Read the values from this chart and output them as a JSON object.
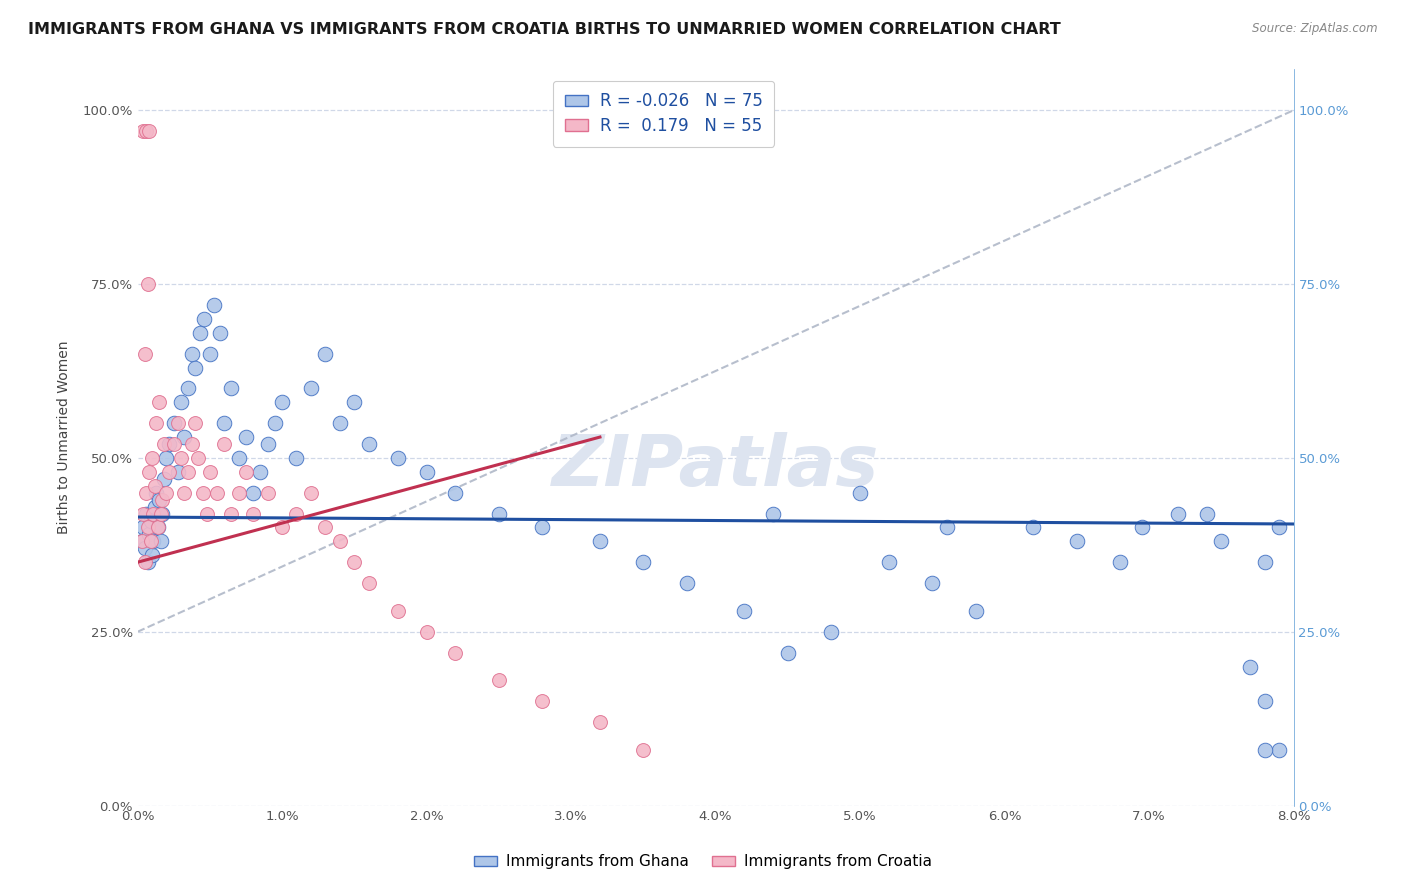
{
  "title": "IMMIGRANTS FROM GHANA VS IMMIGRANTS FROM CROATIA BIRTHS TO UNMARRIED WOMEN CORRELATION CHART",
  "source": "Source: ZipAtlas.com",
  "ylabel": "Births to Unmarried Women",
  "xlim": [
    0.0,
    0.08
  ],
  "ylim": [
    0.0,
    1.06
  ],
  "ghana_color": "#aec6e8",
  "croatia_color": "#f4b8c8",
  "ghana_edge": "#4472c4",
  "croatia_edge": "#e07090",
  "trend_ghana_color": "#1f4fa0",
  "trend_croatia_color": "#c03050",
  "trend_dashed_color": "#b0b8c8",
  "R_ghana": -0.026,
  "N_ghana": 75,
  "R_croatia": 0.179,
  "N_croatia": 55,
  "legend_label_ghana": "Immigrants from Ghana",
  "legend_label_croatia": "Immigrants from Croatia",
  "watermark_text": "ZIPatlas",
  "watermark_color": "#dde4f0",
  "background_color": "#ffffff",
  "grid_color": "#d0d8e8",
  "right_axis_color": "#5b9bd5",
  "title_fontsize": 11.5,
  "axis_label_fontsize": 10,
  "tick_fontsize": 9.5,
  "legend_fontsize": 12,
  "ghana_x": [
    0.0003,
    0.0004,
    0.0005,
    0.0006,
    0.0007,
    0.0008,
    0.0009,
    0.001,
    0.0011,
    0.0012,
    0.0013,
    0.0014,
    0.0015,
    0.0016,
    0.0017,
    0.0018,
    0.002,
    0.0022,
    0.0025,
    0.0028,
    0.003,
    0.0032,
    0.0035,
    0.0038,
    0.004,
    0.0043,
    0.0046,
    0.005,
    0.0053,
    0.0057,
    0.006,
    0.0065,
    0.007,
    0.0075,
    0.008,
    0.0085,
    0.009,
    0.0095,
    0.01,
    0.011,
    0.012,
    0.013,
    0.014,
    0.015,
    0.016,
    0.018,
    0.02,
    0.022,
    0.025,
    0.028,
    0.032,
    0.035,
    0.038,
    0.042,
    0.045,
    0.048,
    0.052,
    0.055,
    0.058,
    0.062,
    0.065,
    0.068,
    0.072,
    0.075,
    0.078,
    0.0695,
    0.074,
    0.077,
    0.078,
    0.079,
    0.044,
    0.05,
    0.056,
    0.079,
    0.078
  ],
  "ghana_y": [
    0.38,
    0.4,
    0.37,
    0.42,
    0.35,
    0.39,
    0.41,
    0.36,
    0.38,
    0.43,
    0.45,
    0.4,
    0.44,
    0.38,
    0.42,
    0.47,
    0.5,
    0.52,
    0.55,
    0.48,
    0.58,
    0.53,
    0.6,
    0.65,
    0.63,
    0.68,
    0.7,
    0.65,
    0.72,
    0.68,
    0.55,
    0.6,
    0.5,
    0.53,
    0.45,
    0.48,
    0.52,
    0.55,
    0.58,
    0.5,
    0.6,
    0.65,
    0.55,
    0.58,
    0.52,
    0.5,
    0.48,
    0.45,
    0.42,
    0.4,
    0.38,
    0.35,
    0.32,
    0.28,
    0.22,
    0.25,
    0.35,
    0.32,
    0.28,
    0.4,
    0.38,
    0.35,
    0.42,
    0.38,
    0.35,
    0.4,
    0.42,
    0.2,
    0.15,
    0.08,
    0.42,
    0.45,
    0.4,
    0.4,
    0.08
  ],
  "croatia_x": [
    0.0003,
    0.0004,
    0.0005,
    0.0006,
    0.0007,
    0.0008,
    0.0009,
    0.001,
    0.0011,
    0.0012,
    0.0013,
    0.0014,
    0.0015,
    0.0016,
    0.0017,
    0.0018,
    0.002,
    0.0022,
    0.0025,
    0.0028,
    0.003,
    0.0032,
    0.0035,
    0.0038,
    0.004,
    0.0042,
    0.0045,
    0.0048,
    0.005,
    0.0055,
    0.006,
    0.0065,
    0.007,
    0.0075,
    0.008,
    0.009,
    0.01,
    0.011,
    0.012,
    0.013,
    0.014,
    0.015,
    0.016,
    0.018,
    0.02,
    0.022,
    0.025,
    0.028,
    0.032,
    0.035,
    0.0004,
    0.0006,
    0.0008,
    0.0007,
    0.0005
  ],
  "croatia_y": [
    0.38,
    0.42,
    0.35,
    0.45,
    0.4,
    0.48,
    0.38,
    0.5,
    0.42,
    0.46,
    0.55,
    0.4,
    0.58,
    0.42,
    0.44,
    0.52,
    0.45,
    0.48,
    0.52,
    0.55,
    0.5,
    0.45,
    0.48,
    0.52,
    0.55,
    0.5,
    0.45,
    0.42,
    0.48,
    0.45,
    0.52,
    0.42,
    0.45,
    0.48,
    0.42,
    0.45,
    0.4,
    0.42,
    0.45,
    0.4,
    0.38,
    0.35,
    0.32,
    0.28,
    0.25,
    0.22,
    0.18,
    0.15,
    0.12,
    0.08,
    0.97,
    0.97,
    0.97,
    0.75,
    0.65
  ],
  "ghana_trend_x": [
    0.0,
    0.08
  ],
  "ghana_trend_y": [
    0.415,
    0.405
  ],
  "croatia_trend_x": [
    0.0,
    0.032
  ],
  "croatia_trend_y": [
    0.35,
    0.53
  ],
  "dashed_trend_x": [
    0.0,
    0.08
  ],
  "dashed_trend_y": [
    0.25,
    1.0
  ]
}
